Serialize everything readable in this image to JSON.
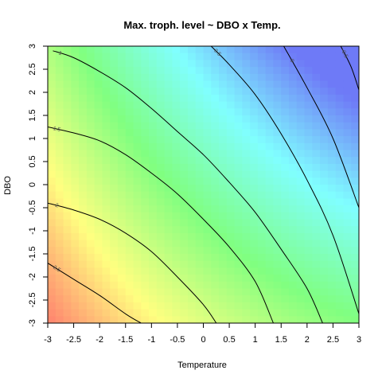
{
  "chart_data": {
    "type": "heatmap",
    "title": "Max. troph. level  ~  DBO x Temp.",
    "xlabel": "Temperature",
    "ylabel": "DBO",
    "xlim": [
      -3,
      3
    ],
    "ylim": [
      -3,
      3
    ],
    "xticks": [
      "-3",
      "-2.5",
      "-2",
      "-1.5",
      "-1",
      "-0.5",
      "0",
      "0.5",
      "1",
      "1.5",
      "2",
      "2.5",
      "3"
    ],
    "yticks": [
      "-3",
      "-2.5",
      "-2",
      "-1.5",
      "-1",
      "-0.5",
      "0",
      "0.5",
      "1",
      "1.5",
      "2",
      "2.5",
      "3"
    ],
    "color_ramp": [
      "#ff6b6b",
      "#ffff80",
      "#80ff80",
      "#80ffff",
      "#6e7af7"
    ],
    "surface_range": [
      -0.7,
      3.0
    ],
    "contours": [
      {
        "level": "2.5",
        "points": [
          [
            -3.0,
            -1.7
          ],
          [
            -2.5,
            -2.05
          ],
          [
            -2.0,
            -2.4
          ],
          [
            -1.5,
            -2.8
          ],
          [
            -1.2,
            -3.0
          ]
        ]
      },
      {
        "level": "2",
        "points": [
          [
            -3.0,
            -0.4
          ],
          [
            -2.5,
            -0.55
          ],
          [
            -2.0,
            -0.75
          ],
          [
            -1.5,
            -1.05
          ],
          [
            -1.0,
            -1.45
          ],
          [
            -0.5,
            -2.0
          ],
          [
            0.0,
            -2.6
          ],
          [
            0.25,
            -3.0
          ]
        ]
      },
      {
        "level": "1.5",
        "points": [
          [
            -3.0,
            1.25
          ],
          [
            -2.5,
            1.12
          ],
          [
            -2.0,
            0.95
          ],
          [
            -1.5,
            0.65
          ],
          [
            -1.0,
            0.25
          ],
          [
            -0.5,
            -0.2
          ],
          [
            0.0,
            -0.75
          ],
          [
            0.5,
            -1.35
          ],
          [
            1.0,
            -2.1
          ],
          [
            1.35,
            -3.0
          ]
        ]
      },
      {
        "level": "1",
        "points": [
          [
            -2.9,
            2.9
          ],
          [
            -2.5,
            2.75
          ],
          [
            -2.0,
            2.45
          ],
          [
            -1.5,
            2.1
          ],
          [
            -1.0,
            1.65
          ],
          [
            -0.5,
            1.15
          ],
          [
            0.0,
            0.65
          ],
          [
            0.5,
            0.05
          ],
          [
            1.0,
            -0.6
          ],
          [
            1.5,
            -1.4
          ],
          [
            2.0,
            -2.25
          ],
          [
            2.3,
            -3.0
          ]
        ]
      },
      {
        "level": "0.5",
        "points": [
          [
            0.15,
            3.0
          ],
          [
            0.5,
            2.6
          ],
          [
            1.0,
            1.95
          ],
          [
            1.5,
            1.1
          ],
          [
            2.0,
            0.1
          ],
          [
            2.5,
            -1.1
          ],
          [
            3.0,
            -2.8
          ]
        ]
      },
      {
        "level": "0",
        "points": [
          [
            1.55,
            3.0
          ],
          [
            2.0,
            2.1
          ],
          [
            2.5,
            1.0
          ],
          [
            3.0,
            -0.5
          ]
        ]
      },
      {
        "level": "-0.5",
        "points": [
          [
            2.65,
            3.0
          ],
          [
            2.85,
            2.55
          ],
          [
            3.0,
            2.05
          ]
        ]
      }
    ]
  }
}
